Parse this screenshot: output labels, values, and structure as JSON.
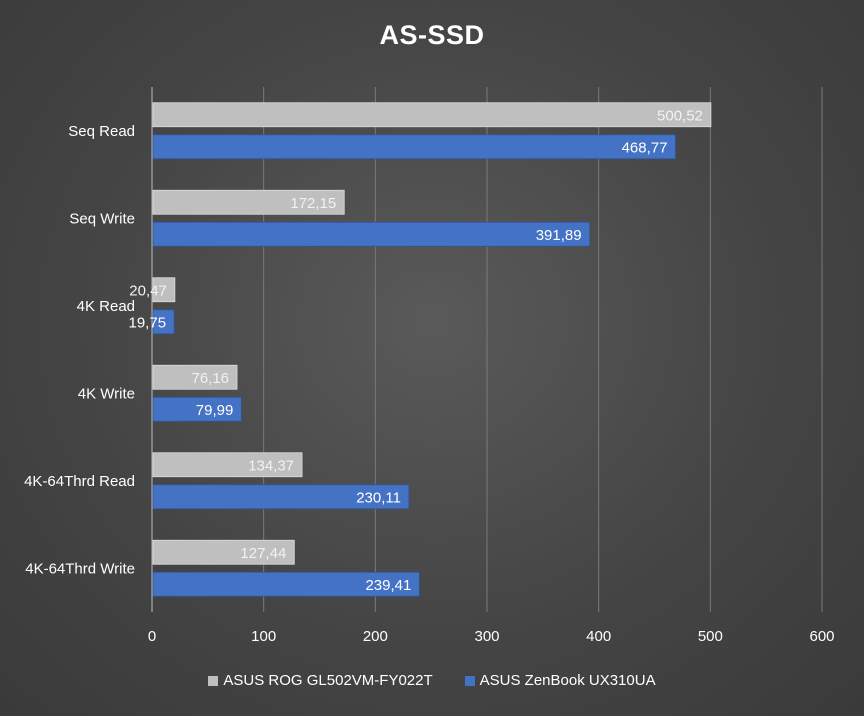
{
  "chart_data": {
    "type": "bar",
    "orientation": "horizontal",
    "title": "AS-SSD",
    "categories": [
      "Seq Read",
      "Seq Write",
      "4K Read",
      "4K Write",
      "4K-64Thrd Read",
      "4K-64Thrd Write"
    ],
    "series": [
      {
        "name": "ASUS ROG GL502VM-FY022T",
        "color": "#bfbfbf",
        "values": [
          500.52,
          172.15,
          20.47,
          76.16,
          134.37,
          127.44
        ],
        "labels": [
          "500,52",
          "172,15",
          "20,47",
          "76,16",
          "134,37",
          "127,44"
        ]
      },
      {
        "name": "ASUS ZenBook UX310UA",
        "color": "#4472c4",
        "values": [
          468.77,
          391.89,
          19.75,
          79.99,
          230.11,
          239.41
        ],
        "labels": [
          "468,77",
          "391,89",
          "19,75",
          "79,99",
          "230,11",
          "239,41"
        ]
      }
    ],
    "xlim": [
      0,
      600
    ],
    "xticks": [
      "0",
      "100",
      "200",
      "300",
      "400",
      "500",
      "600"
    ],
    "xlabel": "",
    "ylabel": "",
    "grid": true,
    "legend_position": "bottom"
  }
}
